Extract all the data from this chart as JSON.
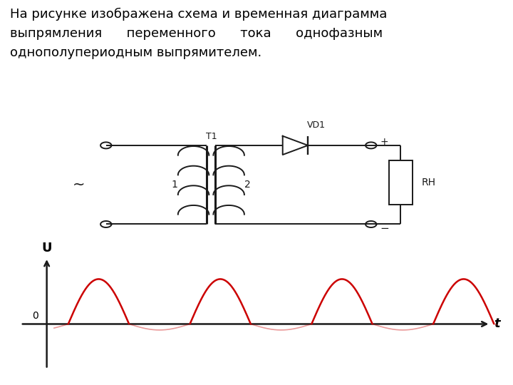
{
  "text_title": "На рисунке изображена схема и временная диаграмма\nвыпрямления      переменного      тока      однофазным\nоднополупериодным выпрямителем.",
  "text_color": "#000000",
  "bg_color": "#ffffff",
  "wave_color": "#cc0000",
  "wave_lw": 1.8,
  "wave_neg_alpha": 0.4,
  "wave_neg_scale": 0.15,
  "axis_color": "#000000",
  "label_U": "U",
  "label_t": "t",
  "label_0": "0",
  "circuit_line_color": "#1a1a1a",
  "circuit_line_lw": 1.4,
  "text_fontsize": 13.0
}
